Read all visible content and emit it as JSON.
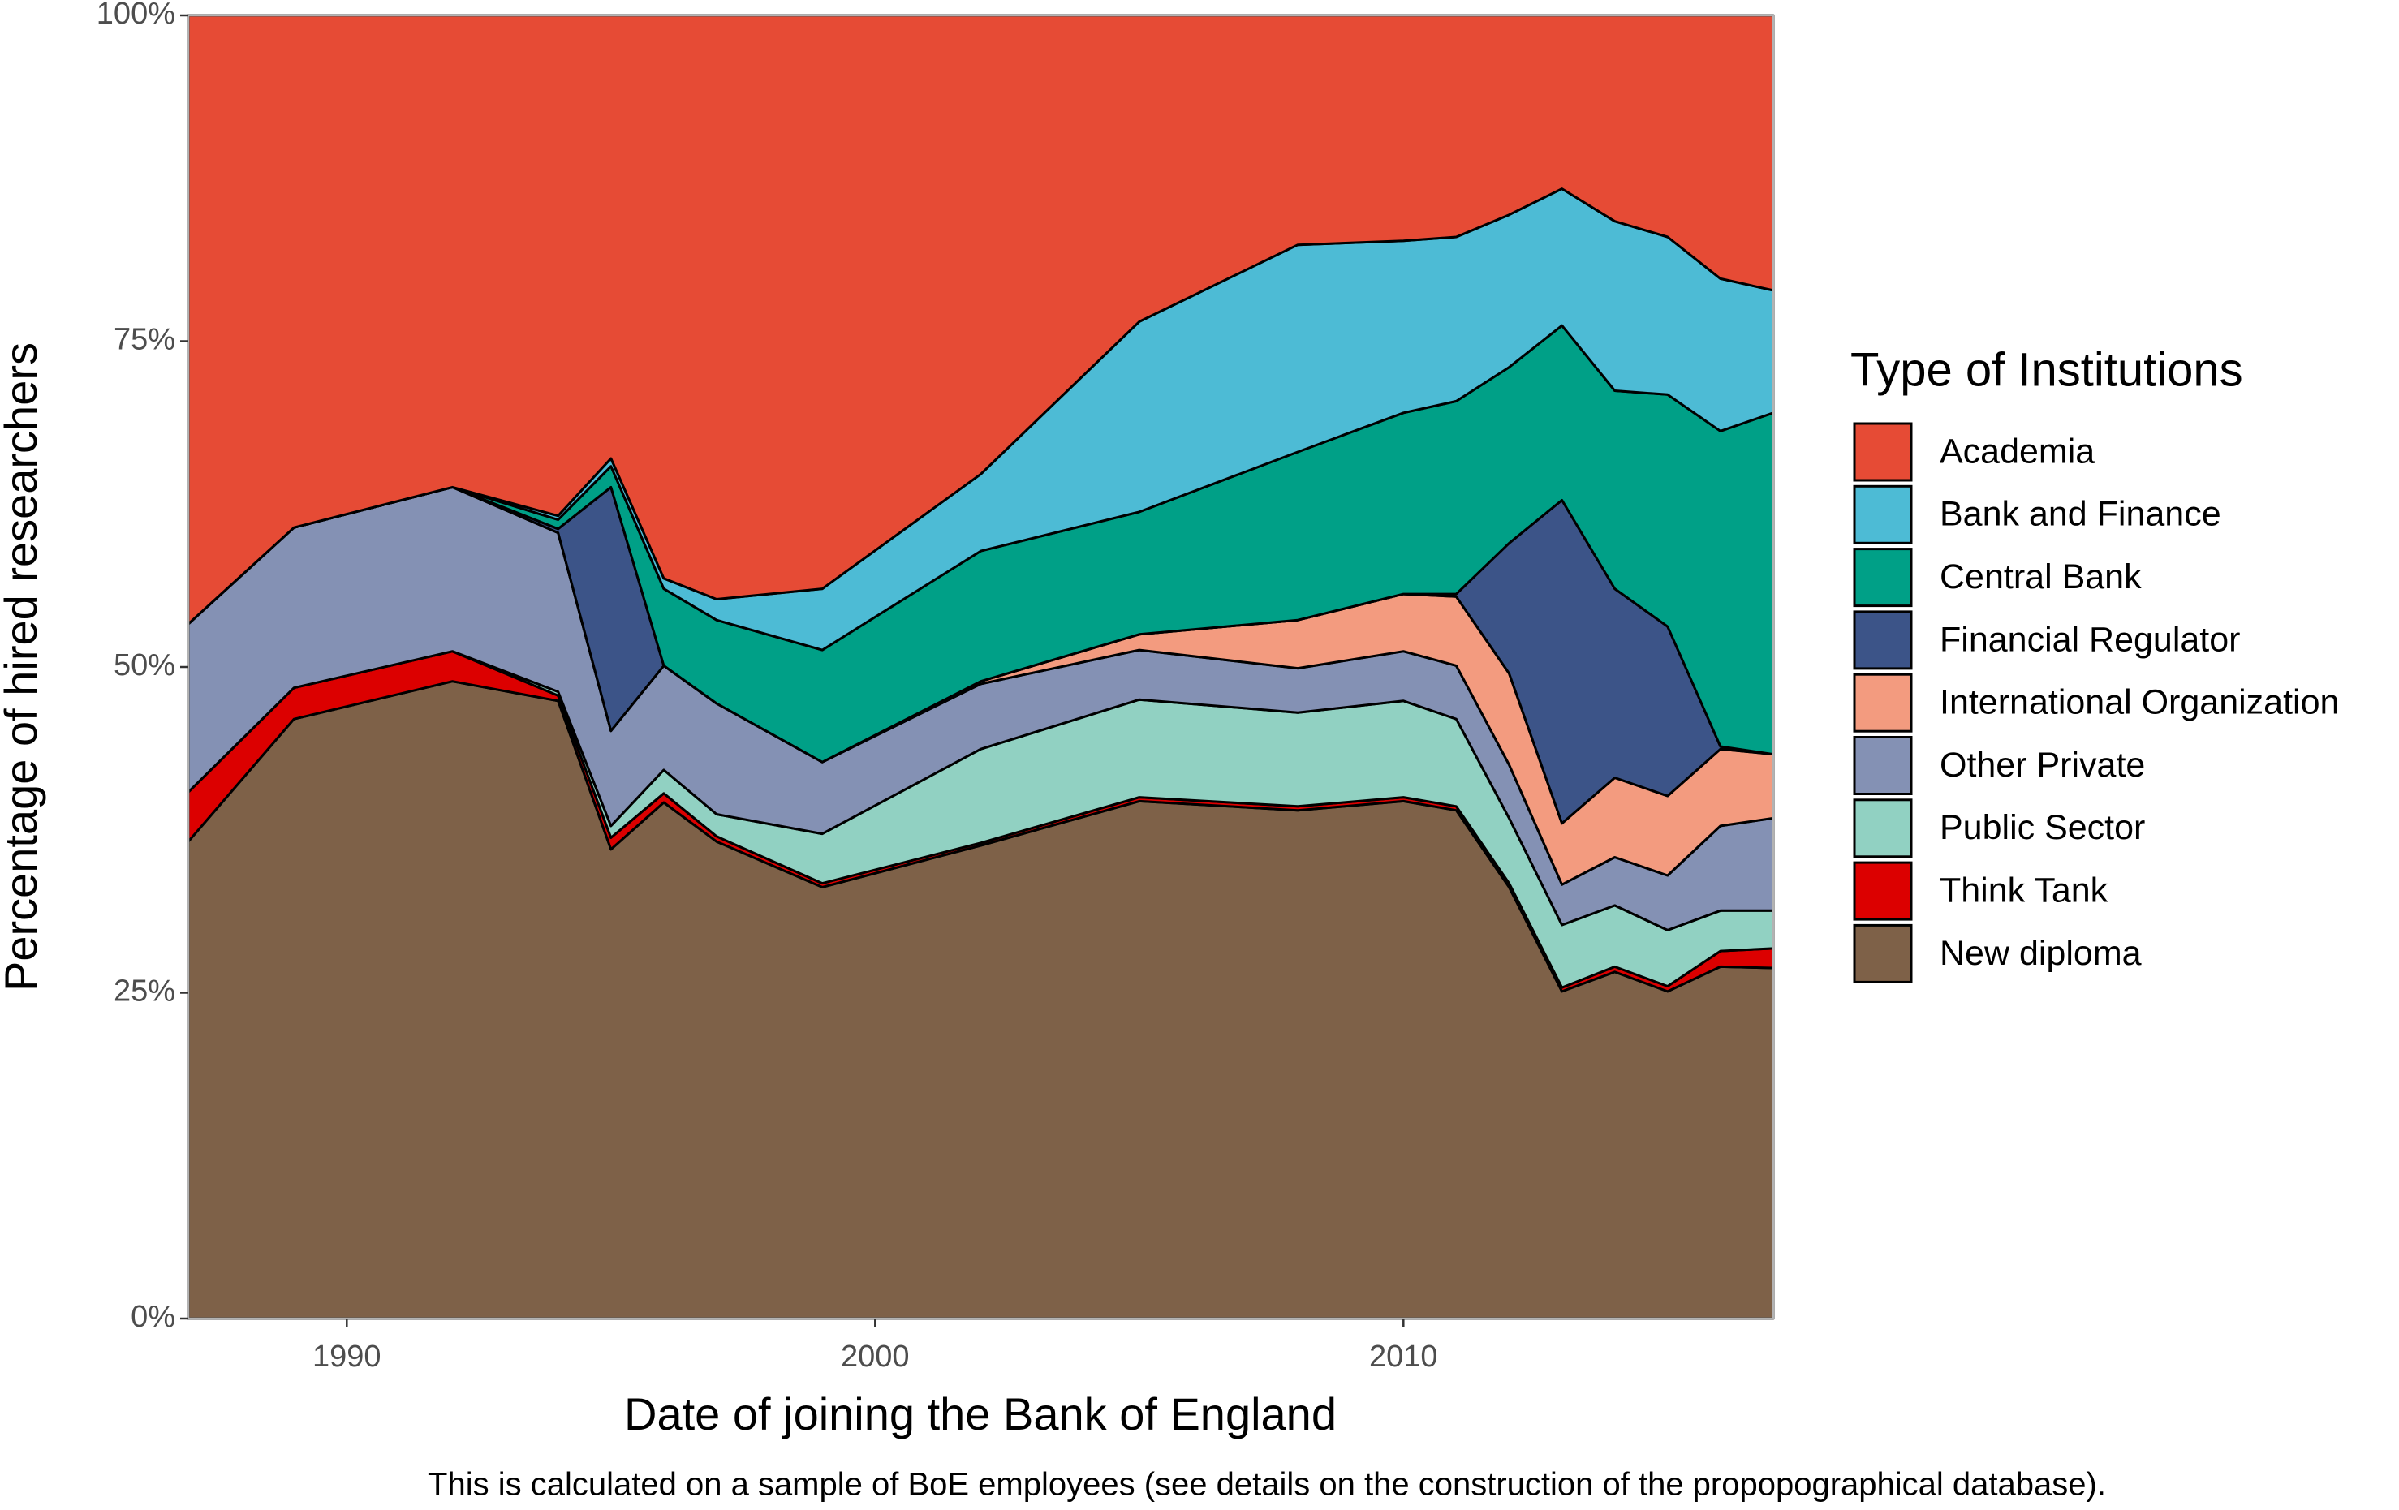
{
  "chart_data": {
    "type": "stacked-area",
    "x_label": "Date of joining the Bank of England",
    "y_label": "Percentage of hired researchers",
    "caption": "This is calculated on a sample of BoE employees (see details on the construction of the propopographical database).",
    "legend_title": "Type of Institutions",
    "legend_position": "right",
    "x": [
      1987,
      1989,
      1992,
      1994,
      1995,
      1996,
      1997,
      1999,
      2002,
      2005,
      2008,
      2010,
      2011,
      2012,
      2013,
      2014,
      2015,
      2016,
      2017
    ],
    "xlim": [
      1987,
      2017
    ],
    "xticks": [
      1990,
      2000,
      2010
    ],
    "ylim": [
      0,
      100
    ],
    "yticks": [
      {
        "value": 0,
        "label": "0%"
      },
      {
        "value": 25,
        "label": "25%"
      },
      {
        "value": 50,
        "label": "50%"
      },
      {
        "value": 75,
        "label": "75%"
      },
      {
        "value": 100,
        "label": "100%"
      }
    ],
    "grid": false,
    "series": [
      {
        "name": "Academia",
        "color": "#E64B35",
        "values": [
          46.7,
          39.3,
          36.2,
          38.4,
          34,
          43.2,
          44.8,
          44,
          35.2,
          23.5,
          17.6,
          17.3,
          17,
          15.3,
          13.3,
          15.8,
          17,
          20.2,
          21.1
        ]
      },
      {
        "name": "Bank and Finance",
        "color": "#4DBBD5",
        "values": [
          0,
          0,
          0,
          0.3,
          0.6,
          0.8,
          1.6,
          4.7,
          5.9,
          14.6,
          15.9,
          13.2,
          12.6,
          11.7,
          10.5,
          13,
          12.1,
          11.7,
          9.4
        ]
      },
      {
        "name": "Central Bank",
        "color": "#00A087",
        "values": [
          0,
          0,
          0,
          0.7,
          1.6,
          5.9,
          6.4,
          8.6,
          10,
          9.4,
          12.9,
          13.9,
          14.8,
          13.5,
          13.4,
          15.2,
          17.8,
          24.2,
          26.2
        ]
      },
      {
        "name": "Financial Regulator",
        "color": "#3C5488",
        "values": [
          0,
          0,
          0,
          0.3,
          18.7,
          0,
          0,
          0,
          0,
          0,
          0,
          0,
          0.2,
          10,
          24.8,
          14.5,
          13,
          0.2,
          0
        ]
      },
      {
        "name": "International Organization",
        "color": "#F39B7F",
        "values": [
          0,
          0,
          0,
          0,
          0,
          0,
          0,
          0,
          0.2,
          1.2,
          3.7,
          4.4,
          5.3,
          7,
          4.7,
          6.1,
          6.1,
          5.9,
          4.9
        ]
      },
      {
        "name": "Other Private",
        "color": "#8491B4",
        "values": [
          12.9,
          12.3,
          12.6,
          12.2,
          7.3,
          8,
          8.5,
          5.5,
          5,
          3.8,
          3.4,
          3.8,
          4.1,
          4.1,
          3.1,
          3.7,
          4.2,
          6.5,
          7.1
        ]
      },
      {
        "name": "Public Sector",
        "color": "#91D1C2",
        "values": [
          0,
          0,
          0,
          0.3,
          0.9,
          1.8,
          1.7,
          3.8,
          7.2,
          7.5,
          7.2,
          7.4,
          6.7,
          5,
          4.8,
          4.7,
          4.3,
          3.1,
          2.9
        ]
      },
      {
        "name": "Think Tank",
        "color": "#DC0000",
        "values": [
          3.8,
          2.4,
          2.3,
          0.4,
          0.9,
          0.7,
          0.4,
          0.3,
          0.2,
          0.3,
          0.3,
          0.3,
          0.3,
          0.3,
          0.3,
          0.4,
          0.4,
          1.2,
          1.5
        ]
      },
      {
        "name": "New diploma",
        "color": "#7E6148",
        "values": [
          36.6,
          46,
          48.9,
          47.4,
          36,
          39.6,
          36.6,
          33.1,
          36.3,
          39.7,
          39,
          39.7,
          39,
          33.1,
          25.1,
          26.6,
          25.1,
          27,
          26.9
        ]
      }
    ]
  }
}
